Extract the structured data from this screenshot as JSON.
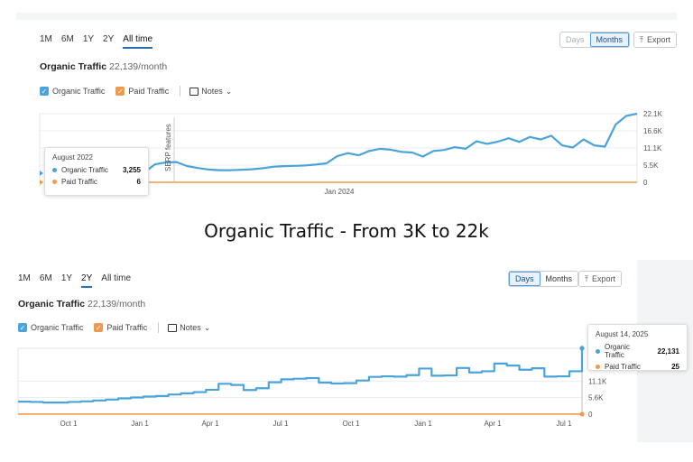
{
  "caption": "Organic Traffic - From 3K to 22k",
  "colors": {
    "organic": "#4ba3dc",
    "paid": "#f09a4d",
    "accent": "#2b6cb0"
  },
  "top": {
    "tabs": [
      "1M",
      "6M",
      "1Y",
      "2Y",
      "All time"
    ],
    "active_tab": "All time",
    "toggle": [
      "Days",
      "Months"
    ],
    "toggle_active": "Months",
    "export_label": "Export",
    "title": "Organic Traffic",
    "title_value": "22,139/month",
    "legend": {
      "organic": "Organic Traffic",
      "paid": "Paid Traffic",
      "notes": "Notes"
    },
    "serp_label": "SERP features",
    "tooltip": {
      "date": "August 2022",
      "organic_label": "Organic Traffic",
      "organic_value": "3,255",
      "paid_label": "Paid Traffic",
      "paid_value": "6"
    }
  },
  "bottom": {
    "tabs": [
      "1M",
      "6M",
      "1Y",
      "2Y",
      "All time"
    ],
    "active_tab": "2Y",
    "toggle": [
      "Days",
      "Months"
    ],
    "toggle_active": "Days",
    "export_label": "Export",
    "title": "Organic Traffic",
    "title_value": "22,139/month",
    "legend": {
      "organic": "Organic Traffic",
      "paid": "Paid Traffic",
      "notes": "Notes"
    },
    "tooltip": {
      "date": "August 14, 2025",
      "organic_label": "Organic Traffic",
      "organic_value": "22,131",
      "paid_label": "Paid Traffic",
      "paid_value": "25"
    }
  },
  "chart_data": [
    {
      "type": "line",
      "ylim": [
        0,
        22100
      ],
      "yticks": [
        22100,
        16600,
        11100,
        5500,
        0
      ],
      "ytick_labels": [
        "22.1K",
        "16.6K",
        "11.1K",
        "5.5K",
        "0"
      ],
      "xtick_labels": [
        "Jan 2024"
      ],
      "series": [
        {
          "name": "Organic Traffic",
          "values": [
            3255,
            5800,
            6400,
            6500,
            5200,
            4600,
            4100,
            3900,
            3900,
            4000,
            4200,
            4500,
            5000,
            5200,
            5300,
            5400,
            5700,
            6100,
            8400,
            9400,
            8700,
            10100,
            10800,
            10500,
            9800,
            9600,
            8300,
            10100,
            10400,
            11300,
            10800,
            13200,
            12400,
            13100,
            14200,
            13000,
            14600,
            13800,
            15000,
            11900,
            11200,
            13800,
            11900,
            11500,
            18600,
            21400,
            22100
          ]
        },
        {
          "name": "Paid Traffic",
          "values": [
            6,
            6,
            6,
            6,
            6,
            6,
            6,
            6,
            6,
            6,
            6,
            6,
            6,
            6,
            6,
            6,
            6,
            6,
            6,
            6,
            6,
            6,
            6,
            6,
            6,
            6,
            6,
            6,
            6,
            6,
            6,
            6,
            6,
            6,
            6,
            6,
            6,
            6,
            6,
            6,
            6,
            6,
            6,
            6,
            6,
            6,
            6
          ]
        }
      ]
    },
    {
      "type": "line",
      "ylim": [
        0,
        22100
      ],
      "yticks": [
        11100,
        5600,
        0
      ],
      "ytick_labels": [
        "11.1K",
        "5.6K",
        "0"
      ],
      "xtick_labels": [
        "Oct 1",
        "Jan 1",
        "Apr 1",
        "Jul 1",
        "Oct 1",
        "Jan 1",
        "Apr 1",
        "Jul 1"
      ],
      "series": [
        {
          "name": "Organic Traffic",
          "values": [
            4200,
            4100,
            3900,
            3900,
            4100,
            4300,
            4600,
            4900,
            5300,
            5600,
            5900,
            6100,
            6600,
            7000,
            7400,
            8200,
            10200,
            9800,
            8100,
            8700,
            10700,
            11700,
            11900,
            12100,
            10600,
            10300,
            10400,
            11300,
            12500,
            12700,
            12600,
            13100,
            15300,
            12900,
            13000,
            15500,
            14000,
            14400,
            17000,
            16300,
            14900,
            15400,
            12600,
            12700,
            14400,
            22131
          ]
        },
        {
          "name": "Paid Traffic",
          "values": [
            25,
            25,
            25,
            25,
            25,
            25,
            25,
            25,
            25,
            25,
            25,
            25,
            25,
            25,
            25,
            25,
            25,
            25,
            25,
            25,
            25,
            25,
            25,
            25,
            25,
            25,
            25,
            25,
            25,
            25,
            25,
            25,
            25,
            25,
            25,
            25,
            25,
            25,
            25,
            25,
            25,
            25,
            25,
            25,
            25,
            25
          ]
        }
      ]
    }
  ]
}
